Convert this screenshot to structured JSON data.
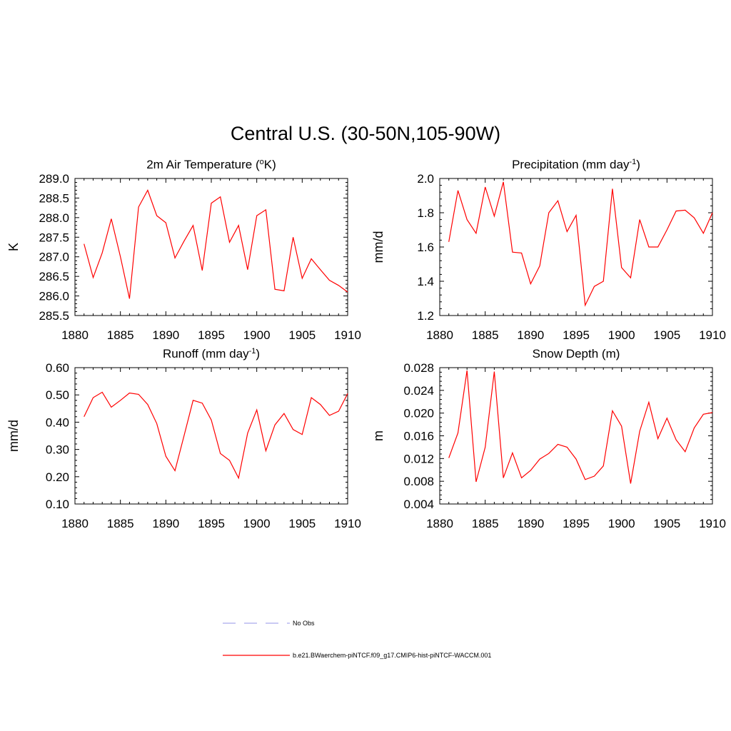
{
  "figure": {
    "title": "Central U.S. (30-50N,105-90W)",
    "legend": [
      {
        "label": "No Obs",
        "color": "#aaaaee",
        "style": "dashed"
      },
      {
        "label": "b.e21.BWaerchem-piNTCF.f09_g17.CMIP6-hist-piNTCF-WACCM.001",
        "color": "#ff0000",
        "style": "solid"
      }
    ]
  },
  "chart_data": [
    {
      "type": "line",
      "title": "2m Air Temperature (",
      "title_sup": "o",
      "title_tail": "K)",
      "ylabel": "K",
      "xlim": [
        1880,
        1910
      ],
      "ylim": [
        285.5,
        289.0
      ],
      "xticks": [
        "1880",
        "1885",
        "1890",
        "1895",
        "1900",
        "1905",
        "1910"
      ],
      "yticks": [
        "285.5",
        "286.0",
        "286.5",
        "287.0",
        "287.5",
        "288.0",
        "288.5",
        "289.0"
      ],
      "color": "#ff0000",
      "x": [
        1881,
        1882,
        1883,
        1884,
        1885,
        1886,
        1887,
        1888,
        1889,
        1890,
        1891,
        1892,
        1893,
        1894,
        1895,
        1896,
        1897,
        1898,
        1899,
        1900,
        1901,
        1902,
        1903,
        1904,
        1905,
        1906,
        1907,
        1908,
        1909,
        1910
      ],
      "y": [
        287.33,
        286.47,
        287.1,
        287.97,
        287.0,
        285.93,
        288.27,
        288.7,
        288.05,
        287.87,
        286.97,
        287.4,
        287.8,
        286.65,
        288.37,
        288.53,
        287.37,
        287.8,
        286.67,
        288.05,
        288.2,
        286.17,
        286.13,
        287.5,
        286.45,
        286.95,
        286.67,
        286.4,
        286.27,
        286.1
      ]
    },
    {
      "type": "line",
      "title": "Precipitation (mm day",
      "title_sup": "-1",
      "title_tail": ")",
      "ylabel": "mm/d",
      "xlim": [
        1880,
        1910
      ],
      "ylim": [
        1.2,
        2.0
      ],
      "xticks": [
        "1880",
        "1885",
        "1890",
        "1895",
        "1900",
        "1905",
        "1910"
      ],
      "yticks": [
        "1.2",
        "1.4",
        "1.6",
        "1.8",
        "2.0"
      ],
      "color": "#ff0000",
      "x": [
        1881,
        1882,
        1883,
        1884,
        1885,
        1886,
        1887,
        1888,
        1889,
        1890,
        1891,
        1892,
        1893,
        1894,
        1895,
        1896,
        1897,
        1898,
        1899,
        1900,
        1901,
        1902,
        1903,
        1904,
        1905,
        1906,
        1907,
        1908,
        1909,
        1910
      ],
      "y": [
        1.63,
        1.93,
        1.76,
        1.68,
        1.95,
        1.78,
        1.98,
        1.57,
        1.565,
        1.385,
        1.49,
        1.8,
        1.87,
        1.69,
        1.785,
        1.26,
        1.37,
        1.4,
        1.94,
        1.48,
        1.42,
        1.76,
        1.6,
        1.6,
        1.7,
        1.81,
        1.815,
        1.77,
        1.68,
        1.8
      ]
    },
    {
      "type": "line",
      "title": "Runoff (mm day",
      "title_sup": "-1",
      "title_tail": ")",
      "ylabel": "mm/d",
      "xlim": [
        1880,
        1910
      ],
      "ylim": [
        0.1,
        0.6
      ],
      "xticks": [
        "1880",
        "1885",
        "1890",
        "1895",
        "1900",
        "1905",
        "1910"
      ],
      "yticks": [
        "0.10",
        "0.20",
        "0.30",
        "0.40",
        "0.50",
        "0.60"
      ],
      "color": "#ff0000",
      "x": [
        1881,
        1882,
        1883,
        1884,
        1885,
        1886,
        1887,
        1888,
        1889,
        1890,
        1891,
        1892,
        1893,
        1894,
        1895,
        1896,
        1897,
        1898,
        1899,
        1900,
        1901,
        1902,
        1903,
        1904,
        1905,
        1906,
        1907,
        1908,
        1909,
        1910
      ],
      "y": [
        0.42,
        0.49,
        0.51,
        0.455,
        0.48,
        0.507,
        0.502,
        0.465,
        0.395,
        0.275,
        0.222,
        0.35,
        0.48,
        0.47,
        0.408,
        0.285,
        0.26,
        0.195,
        0.36,
        0.445,
        0.295,
        0.39,
        0.432,
        0.373,
        0.355,
        0.49,
        0.465,
        0.425,
        0.44,
        0.505
      ]
    },
    {
      "type": "line",
      "title": "Snow Depth (m)",
      "title_sup": "",
      "title_tail": "",
      "ylabel": "m",
      "xlim": [
        1880,
        1910
      ],
      "ylim": [
        0.004,
        0.028
      ],
      "xticks": [
        "1880",
        "1885",
        "1890",
        "1895",
        "1900",
        "1905",
        "1910"
      ],
      "yticks": [
        "0.004",
        "0.008",
        "0.012",
        "0.016",
        "0.020",
        "0.024",
        "0.028"
      ],
      "color": "#ff0000",
      "x": [
        1881,
        1882,
        1883,
        1884,
        1885,
        1886,
        1887,
        1888,
        1889,
        1890,
        1891,
        1892,
        1893,
        1894,
        1895,
        1896,
        1897,
        1898,
        1899,
        1900,
        1901,
        1902,
        1903,
        1904,
        1905,
        1906,
        1907,
        1908,
        1909,
        1910
      ],
      "y": [
        0.0121,
        0.0165,
        0.0275,
        0.0079,
        0.014,
        0.0273,
        0.0086,
        0.013,
        0.0086,
        0.0099,
        0.0119,
        0.0129,
        0.0145,
        0.014,
        0.0119,
        0.0083,
        0.0089,
        0.0107,
        0.0204,
        0.0177,
        0.0076,
        0.0168,
        0.0219,
        0.0155,
        0.0191,
        0.0153,
        0.0132,
        0.0174,
        0.0198,
        0.0201
      ]
    }
  ]
}
